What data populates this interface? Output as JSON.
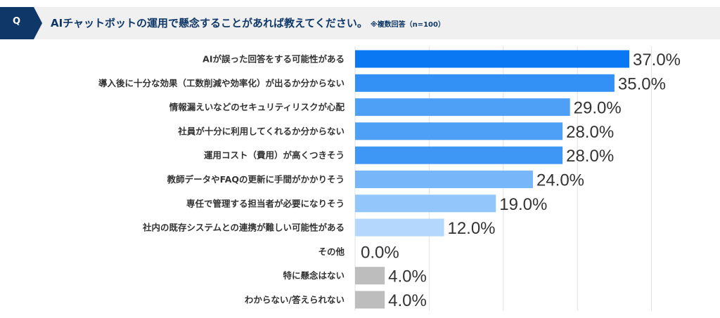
{
  "header": {
    "q": "Q",
    "title": "AIチャットボットの運用で懸念することがあれば教えてください。",
    "note": "※複数回答（n=100）"
  },
  "chart_data": {
    "type": "bar",
    "orientation": "horizontal",
    "xlim": [
      0,
      50
    ],
    "grid": true,
    "categories": [
      "AIが誤った回答をする可能性がある",
      "導入後に十分な効果（工数削減や効率化）が出るか分からない",
      "情報漏えいなどのセキュリティリスクが心配",
      "社員が十分に利用してくれるか分からない",
      "運用コスト（費用）が高くつきそう",
      "教師データやFAQの更新に手間がかかりそう",
      "専任で管理する担当者が必要になりそう",
      "社内の既存システムとの連携が難しい可能性がある",
      "その他",
      "特に懸念はない",
      "わからない/答えられない"
    ],
    "values": [
      37.0,
      35.0,
      29.0,
      28.0,
      28.0,
      24.0,
      19.0,
      12.0,
      0.0,
      4.0,
      4.0
    ],
    "labels": [
      "37.0%",
      "35.0%",
      "29.0%",
      "28.0%",
      "28.0%",
      "24.0%",
      "19.0%",
      "12.0%",
      "0.0%",
      "4.0%",
      "4.0%"
    ],
    "colors": [
      "#0a78f2",
      "#3390f4",
      "#4ea0f7",
      "#4ea0f7",
      "#3f97f5",
      "#78b6fa",
      "#93c6fb",
      "#b3d7fd",
      "#bdbdbd",
      "#bdbdbd",
      "#bdbdbd"
    ]
  }
}
